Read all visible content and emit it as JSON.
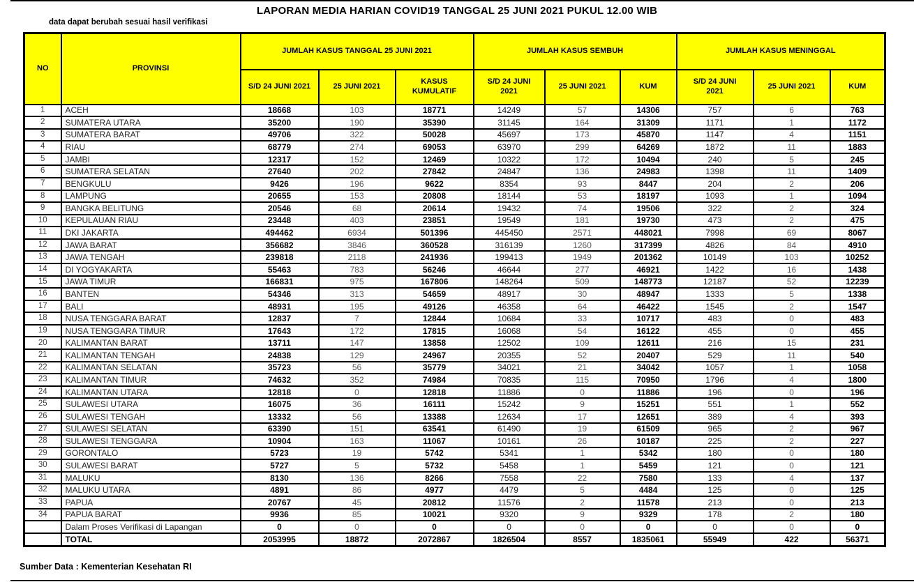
{
  "title": "LAPORAN MEDIA HARIAN COVID19 TANGGAL 25 JUNI 2021 PUKUL 12.00 WIB",
  "subtitle": "data dapat berubah sesuai hasil verifikasi",
  "source": "Sumber Data : Kementerian Kesehatan RI",
  "colors": {
    "header_bg": "#FFFF00",
    "border": "#000000",
    "muted_text": "#595959"
  },
  "table": {
    "col_no": "NO",
    "col_provinsi": "PROVINSI",
    "groups": [
      {
        "label": "JUMLAH KASUS TANGGAL 25 JUNI 2021",
        "sub": [
          "S/D 24 JUNI 2021",
          "25 JUNI 2021",
          "KASUS\nKUMULATIF"
        ]
      },
      {
        "label": "JUMLAH KASUS SEMBUH",
        "sub": [
          "S/D 24 JUNI\n2021",
          "25 JUNI 2021",
          "KUM"
        ]
      },
      {
        "label": "JUMLAH KASUS MENINGGAL",
        "sub": [
          "S/D 24 JUNI\n2021",
          "25 JUNI 2021",
          "KUM"
        ]
      }
    ],
    "rows": [
      {
        "no": "1",
        "provinsi": "ACEH",
        "values": [
          18668,
          103,
          18771,
          14249,
          57,
          14306,
          757,
          6,
          763
        ]
      },
      {
        "no": "2",
        "provinsi": "SUMATERA UTARA",
        "values": [
          35200,
          190,
          35390,
          31145,
          164,
          31309,
          1171,
          1,
          1172
        ]
      },
      {
        "no": "3",
        "provinsi": "SUMATERA BARAT",
        "values": [
          49706,
          322,
          50028,
          45697,
          173,
          45870,
          1147,
          4,
          1151
        ]
      },
      {
        "no": "4",
        "provinsi": "RIAU",
        "values": [
          68779,
          274,
          69053,
          63970,
          299,
          64269,
          1872,
          11,
          1883
        ]
      },
      {
        "no": "5",
        "provinsi": "JAMBI",
        "values": [
          12317,
          152,
          12469,
          10322,
          172,
          10494,
          240,
          5,
          245
        ]
      },
      {
        "no": "6",
        "provinsi": "SUMATERA SELATAN",
        "values": [
          27640,
          202,
          27842,
          24847,
          136,
          24983,
          1398,
          11,
          1409
        ]
      },
      {
        "no": "7",
        "provinsi": "BENGKULU",
        "values": [
          9426,
          196,
          9622,
          8354,
          93,
          8447,
          204,
          2,
          206
        ]
      },
      {
        "no": "8",
        "provinsi": "LAMPUNG",
        "values": [
          20655,
          153,
          20808,
          18144,
          53,
          18197,
          1093,
          1,
          1094
        ]
      },
      {
        "no": "9",
        "provinsi": "BANGKA BELITUNG",
        "values": [
          20546,
          68,
          20614,
          19432,
          74,
          19506,
          322,
          2,
          324
        ]
      },
      {
        "no": "10",
        "provinsi": "KEPULAUAN RIAU",
        "values": [
          23448,
          403,
          23851,
          19549,
          181,
          19730,
          473,
          2,
          475
        ]
      },
      {
        "no": "11",
        "provinsi": "DKI JAKARTA",
        "values": [
          494462,
          6934,
          501396,
          445450,
          2571,
          448021,
          7998,
          69,
          8067
        ]
      },
      {
        "no": "12",
        "provinsi": "JAWA BARAT",
        "values": [
          356682,
          3846,
          360528,
          316139,
          1260,
          317399,
          4826,
          84,
          4910
        ]
      },
      {
        "no": "13",
        "provinsi": "JAWA TENGAH",
        "values": [
          239818,
          2118,
          241936,
          199413,
          1949,
          201362,
          10149,
          103,
          10252
        ]
      },
      {
        "no": "14",
        "provinsi": "DI YOGYAKARTA",
        "values": [
          55463,
          783,
          56246,
          46644,
          277,
          46921,
          1422,
          16,
          1438
        ]
      },
      {
        "no": "15",
        "provinsi": "JAWA TIMUR",
        "values": [
          166831,
          975,
          167806,
          148264,
          509,
          148773,
          12187,
          52,
          12239
        ]
      },
      {
        "no": "16",
        "provinsi": "BANTEN",
        "values": [
          54346,
          313,
          54659,
          48917,
          30,
          48947,
          1333,
          5,
          1338
        ]
      },
      {
        "no": "17",
        "provinsi": "BALI",
        "values": [
          48931,
          195,
          49126,
          46358,
          64,
          46422,
          1545,
          2,
          1547
        ]
      },
      {
        "no": "18",
        "provinsi": "NUSA TENGGARA BARAT",
        "values": [
          12837,
          7,
          12844,
          10684,
          33,
          10717,
          483,
          0,
          483
        ]
      },
      {
        "no": "19",
        "provinsi": "NUSA TENGGARA TIMUR",
        "values": [
          17643,
          172,
          17815,
          16068,
          54,
          16122,
          455,
          0,
          455
        ]
      },
      {
        "no": "20",
        "provinsi": "KALIMANTAN BARAT",
        "values": [
          13711,
          147,
          13858,
          12502,
          109,
          12611,
          216,
          15,
          231
        ]
      },
      {
        "no": "21",
        "provinsi": "KALIMANTAN TENGAH",
        "values": [
          24838,
          129,
          24967,
          20355,
          52,
          20407,
          529,
          11,
          540
        ]
      },
      {
        "no": "22",
        "provinsi": "KALIMANTAN SELATAN",
        "values": [
          35723,
          56,
          35779,
          34021,
          21,
          34042,
          1057,
          1,
          1058
        ]
      },
      {
        "no": "23",
        "provinsi": "KALIMANTAN TIMUR",
        "values": [
          74632,
          352,
          74984,
          70835,
          115,
          70950,
          1796,
          4,
          1800
        ]
      },
      {
        "no": "24",
        "provinsi": "KALIMANTAN UTARA",
        "values": [
          12818,
          0,
          12818,
          11886,
          0,
          11886,
          196,
          0,
          196
        ]
      },
      {
        "no": "25",
        "provinsi": "SULAWESI UTARA",
        "values": [
          16075,
          36,
          16111,
          15242,
          9,
          15251,
          551,
          1,
          552
        ]
      },
      {
        "no": "26",
        "provinsi": "SULAWESI TENGAH",
        "values": [
          13332,
          56,
          13388,
          12634,
          17,
          12651,
          389,
          4,
          393
        ]
      },
      {
        "no": "27",
        "provinsi": "SULAWESI SELATAN",
        "values": [
          63390,
          151,
          63541,
          61490,
          19,
          61509,
          965,
          2,
          967
        ]
      },
      {
        "no": "28",
        "provinsi": "SULAWESI TENGGARA",
        "values": [
          10904,
          163,
          11067,
          10161,
          26,
          10187,
          225,
          2,
          227
        ]
      },
      {
        "no": "29",
        "provinsi": "GORONTALO",
        "values": [
          5723,
          19,
          5742,
          5341,
          1,
          5342,
          180,
          0,
          180
        ]
      },
      {
        "no": "30",
        "provinsi": "SULAWESI BARAT",
        "values": [
          5727,
          5,
          5732,
          5458,
          1,
          5459,
          121,
          0,
          121
        ]
      },
      {
        "no": "31",
        "provinsi": "MALUKU",
        "values": [
          8130,
          136,
          8266,
          7558,
          22,
          7580,
          133,
          4,
          137
        ]
      },
      {
        "no": "32",
        "provinsi": "MALUKU UTARA",
        "values": [
          4891,
          86,
          4977,
          4479,
          5,
          4484,
          125,
          0,
          125
        ]
      },
      {
        "no": "33",
        "provinsi": "PAPUA",
        "values": [
          20767,
          45,
          20812,
          11576,
          2,
          11578,
          213,
          0,
          213
        ]
      },
      {
        "no": "34",
        "provinsi": "PAPUA BARAT",
        "values": [
          9936,
          85,
          10021,
          9320,
          9,
          9329,
          178,
          2,
          180
        ]
      },
      {
        "no": "",
        "provinsi": "Dalam Proses Verifikasi di Lapangan",
        "values": [
          0,
          0,
          0,
          0,
          0,
          0,
          0,
          0,
          0
        ]
      }
    ],
    "total_row": {
      "no": "",
      "provinsi": "TOTAL",
      "values": [
        2053995,
        18872,
        2072867,
        1826504,
        8557,
        1835061,
        55949,
        422,
        56371
      ]
    }
  }
}
